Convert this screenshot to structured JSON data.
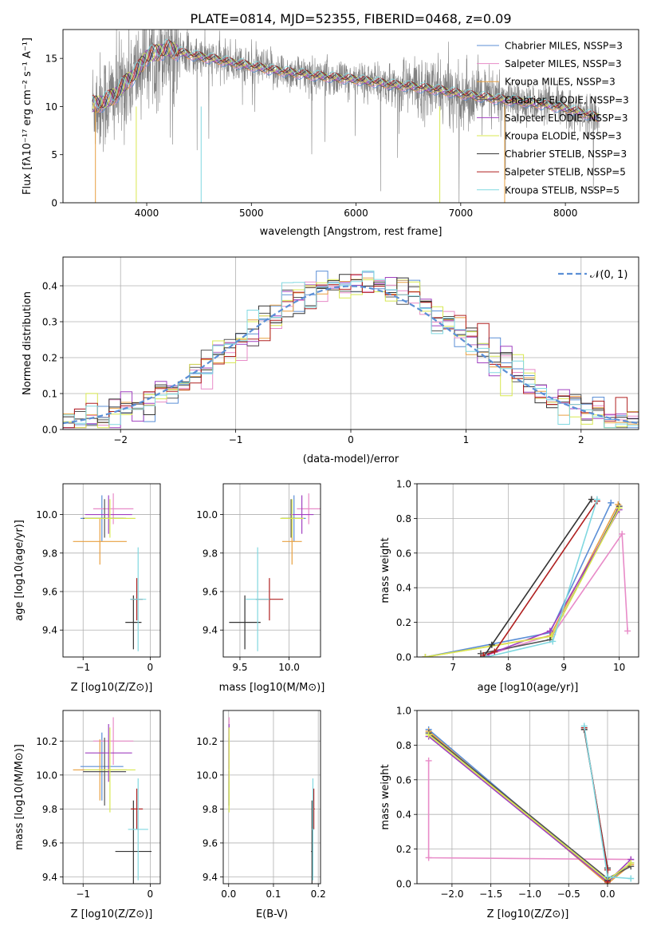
{
  "figure": {
    "title": "PLATE=0814, MJD=52355, FIBERID=0468, z=0.09"
  },
  "colors": {
    "Chabrier MILES": "#5b8fd6",
    "Salpeter MILES": "#e88bc8",
    "Kroupa MILES": "#e8a040",
    "Chabrier ELODIE": "#555555",
    "Salpeter ELODIE": "#a040c0",
    "Kroupa ELODIE": "#d8e850",
    "Chabrier STELIB": "#333333",
    "Salpeter STELIB": "#b02020",
    "Kroupa STELIB": "#80d8e0",
    "data": "#808080",
    "normal": "#5b8fd6"
  },
  "chart_data": [
    {
      "id": "spectrum",
      "type": "line",
      "xlabel": "wavelength [Angstrom, rest frame]",
      "ylabel": "Flux [fλ10⁻¹⁷ erg cm⁻² s⁻¹ A⁻¹]",
      "xlim": [
        3200,
        8700
      ],
      "ylim": [
        0,
        18
      ],
      "xticks": [
        4000,
        5000,
        6000,
        7000,
        8000
      ],
      "yticks": [
        0,
        5,
        10,
        15
      ],
      "grid": false,
      "legend_position": "top-right",
      "legend": [
        "Chabrier MILES, NSSP=3",
        "Salpeter MILES, NSSP=3",
        "Kroupa MILES, NSSP=3",
        "Chabrier ELODIE, NSSP=3",
        "Salpeter ELODIE, NSSP=3",
        "Kroupa ELODIE, NSSP=3",
        "Chabrier STELIB, NSSP=3",
        "Salpeter STELIB, NSSP=5",
        "Kroupa STELIB, NSSP=5"
      ],
      "continuum": {
        "x": [
          3500,
          3600,
          3700,
          3800,
          3900,
          4000,
          4100,
          4200,
          4400,
          4600,
          4800,
          5000,
          5200,
          5400,
          5600,
          5800,
          6000,
          6200,
          6400,
          6600,
          6800,
          7000,
          7200,
          7400,
          7600,
          7800,
          8000,
          8200,
          8300
        ],
        "y": [
          10.2,
          10.5,
          11.2,
          12.5,
          13.5,
          15.2,
          15.6,
          16.0,
          15.4,
          15.0,
          14.6,
          14.2,
          13.8,
          13.5,
          13.2,
          13.0,
          12.8,
          12.5,
          12.2,
          12.0,
          11.7,
          11.3,
          11.0,
          10.7,
          10.5,
          10.2,
          9.8,
          9.2,
          8.9
        ]
      }
    },
    {
      "id": "residuals",
      "type": "histogram",
      "xlabel": "(data-model)/error",
      "ylabel": "Normed distribution",
      "xlim": [
        -2.5,
        2.5
      ],
      "ylim": [
        0,
        0.48
      ],
      "xticks": [
        -2,
        -1,
        0,
        1,
        2
      ],
      "yticks": [
        0.0,
        0.1,
        0.2,
        0.3,
        0.4
      ],
      "grid": true,
      "legend_position": "top-right",
      "legend": [
        "𝒩(0, 1)"
      ]
    },
    {
      "id": "age-vs-z",
      "type": "scatter-errorbar",
      "xlabel": "Z [log10(Z/Z⊙)]",
      "ylabel": "age  [log10(age/yr)]",
      "xlim": [
        -1.3,
        0.15
      ],
      "ylim": [
        9.26,
        10.16
      ],
      "xticks": [
        -1,
        0
      ],
      "yticks": [
        9.4,
        9.6,
        9.8,
        10.0
      ],
      "grid": true,
      "points": [
        {
          "model": "Chabrier MILES",
          "x": -0.72,
          "y": 9.98,
          "xerr": 0.32,
          "yerr": 0.12
        },
        {
          "model": "Salpeter MILES",
          "x": -0.55,
          "y": 10.03,
          "xerr": 0.3,
          "yerr": 0.08
        },
        {
          "model": "Kroupa MILES",
          "x": -0.75,
          "y": 9.86,
          "xerr": 0.4,
          "yerr": 0.12
        },
        {
          "model": "Chabrier ELODIE",
          "x": -0.68,
          "y": 9.98,
          "xerr": 0.32,
          "yerr": 0.1
        },
        {
          "model": "Salpeter ELODIE",
          "x": -0.62,
          "y": 10.0,
          "xerr": 0.35,
          "yerr": 0.1
        },
        {
          "model": "Kroupa ELODIE",
          "x": -0.6,
          "y": 9.98,
          "xerr": 0.38,
          "yerr": 0.1
        },
        {
          "model": "Chabrier STELIB",
          "x": -0.25,
          "y": 9.44,
          "xerr": 0.12,
          "yerr": 0.14
        },
        {
          "model": "Salpeter STELIB",
          "x": -0.2,
          "y": 9.56,
          "xerr": 0.09,
          "yerr": 0.11
        },
        {
          "model": "Kroupa STELIB",
          "x": -0.18,
          "y": 9.56,
          "xerr": 0.12,
          "yerr": 0.27
        }
      ]
    },
    {
      "id": "age-vs-mass",
      "type": "scatter-errorbar",
      "xlabel": "mass [log10(M/M⊙)]",
      "ylabel": "",
      "xlim": [
        9.33,
        10.32
      ],
      "ylim": [
        9.26,
        10.16
      ],
      "xticks": [
        9.5,
        10.0
      ],
      "yticks": [
        9.4,
        9.6,
        9.8,
        10.0
      ],
      "grid": true,
      "points": [
        {
          "model": "Chabrier MILES",
          "x": 10.05,
          "y": 9.98,
          "xerr": 0.12,
          "yerr": 0.12
        },
        {
          "model": "Salpeter MILES",
          "x": 10.2,
          "y": 10.03,
          "xerr": 0.12,
          "yerr": 0.08
        },
        {
          "model": "Kroupa MILES",
          "x": 10.03,
          "y": 9.86,
          "xerr": 0.1,
          "yerr": 0.12
        },
        {
          "model": "Chabrier ELODIE",
          "x": 10.02,
          "y": 9.98,
          "xerr": 0.1,
          "yerr": 0.1
        },
        {
          "model": "Salpeter ELODIE",
          "x": 10.13,
          "y": 10.0,
          "xerr": 0.12,
          "yerr": 0.1
        },
        {
          "model": "Kroupa ELODIE",
          "x": 10.03,
          "y": 9.98,
          "xerr": 0.12,
          "yerr": 0.1
        },
        {
          "model": "Chabrier STELIB",
          "x": 9.55,
          "y": 9.44,
          "xerr": 0.16,
          "yerr": 0.14
        },
        {
          "model": "Salpeter STELIB",
          "x": 9.8,
          "y": 9.56,
          "xerr": 0.14,
          "yerr": 0.11
        },
        {
          "model": "Kroupa STELIB",
          "x": 9.68,
          "y": 9.56,
          "xerr": 0.12,
          "yerr": 0.27
        }
      ]
    },
    {
      "id": "massweight-vs-age",
      "type": "line",
      "xlabel": "age  [log10(age/yr)]",
      "ylabel": "mass weight",
      "xlim": [
        6.35,
        10.35
      ],
      "ylim": [
        0,
        1.0
      ],
      "xticks": [
        7,
        8,
        9,
        10
      ],
      "yticks": [
        0.0,
        0.2,
        0.4,
        0.6,
        0.8,
        1.0
      ],
      "grid": true,
      "series": [
        {
          "model": "Chabrier MILES",
          "x": [
            6.5,
            8.75,
            9.85
          ],
          "y": [
            0.0,
            0.14,
            0.89
          ]
        },
        {
          "model": "Salpeter MILES",
          "x": [
            7.6,
            8.8,
            10.05,
            10.15
          ],
          "y": [
            0.01,
            0.13,
            0.71,
            0.15
          ]
        },
        {
          "model": "Kroupa MILES",
          "x": [
            6.5,
            8.75,
            9.98
          ],
          "y": [
            0.0,
            0.12,
            0.88
          ]
        },
        {
          "model": "Chabrier ELODIE",
          "x": [
            7.5,
            8.75,
            10.0
          ],
          "y": [
            0.02,
            0.1,
            0.87
          ]
        },
        {
          "model": "Salpeter ELODIE",
          "x": [
            7.6,
            8.75,
            10.0
          ],
          "y": [
            0.01,
            0.15,
            0.85
          ]
        },
        {
          "model": "Kroupa ELODIE",
          "x": [
            6.5,
            8.78,
            10.0
          ],
          "y": [
            0.0,
            0.12,
            0.86
          ]
        },
        {
          "model": "Chabrier STELIB",
          "x": [
            7.55,
            7.7,
            9.5
          ],
          "y": [
            0.0,
            0.07,
            0.91
          ]
        },
        {
          "model": "Salpeter STELIB",
          "x": [
            7.55,
            7.75,
            9.6
          ],
          "y": [
            0.01,
            0.03,
            0.9
          ]
        },
        {
          "model": "Kroupa STELIB",
          "x": [
            7.6,
            8.8,
            9.6
          ],
          "y": [
            0.0,
            0.09,
            0.91
          ]
        }
      ]
    },
    {
      "id": "mass-vs-z",
      "type": "scatter-errorbar",
      "xlabel": "Z [log10(Z/Z⊙)]",
      "ylabel": "mass [log10(M/M⊙)]",
      "xlim": [
        -1.3,
        0.15
      ],
      "ylim": [
        9.36,
        10.38
      ],
      "xticks": [
        -1,
        0
      ],
      "yticks": [
        9.4,
        9.6,
        9.8,
        10.0,
        10.2
      ],
      "grid": true,
      "points": [
        {
          "model": "Chabrier MILES",
          "x": -0.72,
          "y": 10.05,
          "xerr": 0.32,
          "yerr": 0.2
        },
        {
          "model": "Salpeter MILES",
          "x": -0.55,
          "y": 10.2,
          "xerr": 0.3,
          "yerr": 0.14
        },
        {
          "model": "Kroupa MILES",
          "x": -0.75,
          "y": 10.03,
          "xerr": 0.4,
          "yerr": 0.18
        },
        {
          "model": "Chabrier ELODIE",
          "x": -0.68,
          "y": 10.02,
          "xerr": 0.32,
          "yerr": 0.2
        },
        {
          "model": "Salpeter ELODIE",
          "x": -0.62,
          "y": 10.13,
          "xerr": 0.35,
          "yerr": 0.17
        },
        {
          "model": "Kroupa ELODIE",
          "x": -0.6,
          "y": 10.03,
          "xerr": 0.38,
          "yerr": 0.25
        },
        {
          "model": "Chabrier STELIB",
          "x": -0.25,
          "y": 9.55,
          "xerr": 0.27,
          "yerr": 0.3
        },
        {
          "model": "Salpeter STELIB",
          "x": -0.2,
          "y": 9.8,
          "xerr": 0.09,
          "yerr": 0.12
        },
        {
          "model": "Kroupa STELIB",
          "x": -0.18,
          "y": 9.68,
          "xerr": 0.15,
          "yerr": 0.3
        }
      ]
    },
    {
      "id": "mass-vs-ebv",
      "type": "scatter-errorbar",
      "xlabel": "E(B-V)",
      "ylabel": "",
      "xlim": [
        -0.012,
        0.205
      ],
      "ylim": [
        9.36,
        10.38
      ],
      "xticks": [
        0.0,
        0.1,
        0.2
      ],
      "yticks": [
        9.4,
        9.6,
        9.8,
        10.0,
        10.2
      ],
      "grid": true,
      "points": [
        {
          "model": "Chabrier MILES",
          "x": 0.001,
          "y": 10.05,
          "xerr": 0.001,
          "yerr": 0.2
        },
        {
          "model": "Salpeter MILES",
          "x": 0.001,
          "y": 10.2,
          "xerr": 0.001,
          "yerr": 0.14
        },
        {
          "model": "Kroupa MILES",
          "x": 0.001,
          "y": 10.03,
          "xerr": 0.001,
          "yerr": 0.18
        },
        {
          "model": "Chabrier ELODIE",
          "x": 0.001,
          "y": 10.02,
          "xerr": 0.001,
          "yerr": 0.2
        },
        {
          "model": "Salpeter ELODIE",
          "x": 0.001,
          "y": 10.13,
          "xerr": 0.001,
          "yerr": 0.17
        },
        {
          "model": "Kroupa ELODIE",
          "x": 0.001,
          "y": 10.03,
          "xerr": 0.001,
          "yerr": 0.25
        },
        {
          "model": "Chabrier STELIB",
          "x": 0.186,
          "y": 9.55,
          "xerr": 0.002,
          "yerr": 0.3
        },
        {
          "model": "Salpeter STELIB",
          "x": 0.19,
          "y": 9.8,
          "xerr": 0.002,
          "yerr": 0.12
        },
        {
          "model": "Kroupa STELIB",
          "x": 0.188,
          "y": 9.68,
          "xerr": 0.002,
          "yerr": 0.3
        }
      ]
    },
    {
      "id": "massweight-vs-z",
      "type": "line",
      "xlabel": "Z [log10(Z/Z⊙)]",
      "ylabel": "mass weight",
      "xlim": [
        -2.45,
        0.4
      ],
      "ylim": [
        0,
        1.0
      ],
      "xticks": [
        -2.0,
        -1.5,
        -1.0,
        -0.5,
        0.0
      ],
      "yticks": [
        0.0,
        0.2,
        0.4,
        0.6,
        0.8,
        1.0
      ],
      "grid": true,
      "series": [
        {
          "model": "Chabrier MILES",
          "x": [
            -2.3,
            0.0,
            0.3
          ],
          "y": [
            0.89,
            0.01,
            0.12
          ]
        },
        {
          "model": "Salpeter MILES",
          "x": [
            -2.3,
            -2.3,
            0.3
          ],
          "y": [
            0.71,
            0.15,
            0.14
          ]
        },
        {
          "model": "Kroupa MILES",
          "x": [
            -2.3,
            0.0,
            0.3
          ],
          "y": [
            0.88,
            0.0,
            0.11
          ]
        },
        {
          "model": "Chabrier ELODIE",
          "x": [
            -2.3,
            0.0,
            0.3
          ],
          "y": [
            0.87,
            0.03,
            0.1
          ]
        },
        {
          "model": "Salpeter ELODIE",
          "x": [
            -2.3,
            0.0,
            0.3
          ],
          "y": [
            0.85,
            0.01,
            0.14
          ]
        },
        {
          "model": "Kroupa ELODIE",
          "x": [
            -2.3,
            0.0,
            0.3
          ],
          "y": [
            0.86,
            0.02,
            0.12
          ]
        },
        {
          "model": "Chabrier STELIB",
          "x": [
            -0.3,
            0.0,
            0.0
          ],
          "y": [
            0.89,
            0.09,
            0.02
          ]
        },
        {
          "model": "Salpeter STELIB",
          "x": [
            -0.3,
            0.0,
            0.0
          ],
          "y": [
            0.9,
            0.08,
            0.01
          ]
        },
        {
          "model": "Kroupa STELIB",
          "x": [
            -0.3,
            0.0,
            0.3
          ],
          "y": [
            0.91,
            0.04,
            0.03
          ]
        }
      ]
    }
  ]
}
